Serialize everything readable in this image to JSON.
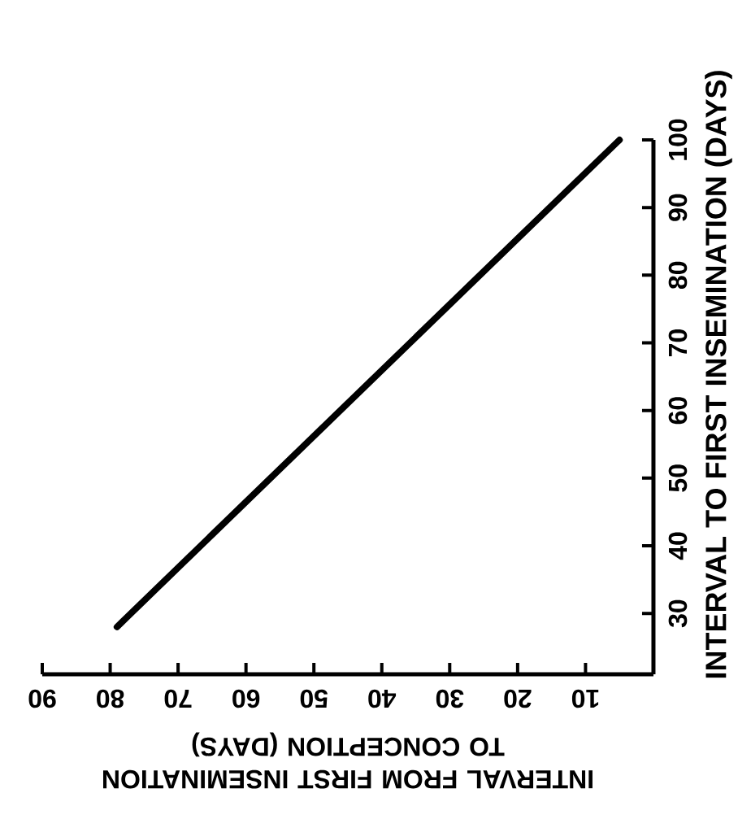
{
  "chart_data": {
    "type": "line",
    "xlabel": "INTERVAL FROM FIRST INSEMINATION TO CONCEPTION (DAYS)",
    "ylabel": "INTERVAL TO FIRST INSEMINATION (DAYS)",
    "x": [
      79,
      5
    ],
    "series": [
      {
        "color": "#000000",
        "values": [
          28,
          100
        ]
      }
    ],
    "xlim": [
      90,
      0
    ],
    "ylim": [
      21,
      100
    ],
    "xticks": [
      90,
      80,
      70,
      60,
      50,
      40,
      30,
      20,
      10
    ],
    "yticks": [
      30,
      40,
      50,
      60,
      70,
      80,
      90,
      100
    ],
    "grid": false,
    "marker": "none",
    "line_style": "solid"
  }
}
